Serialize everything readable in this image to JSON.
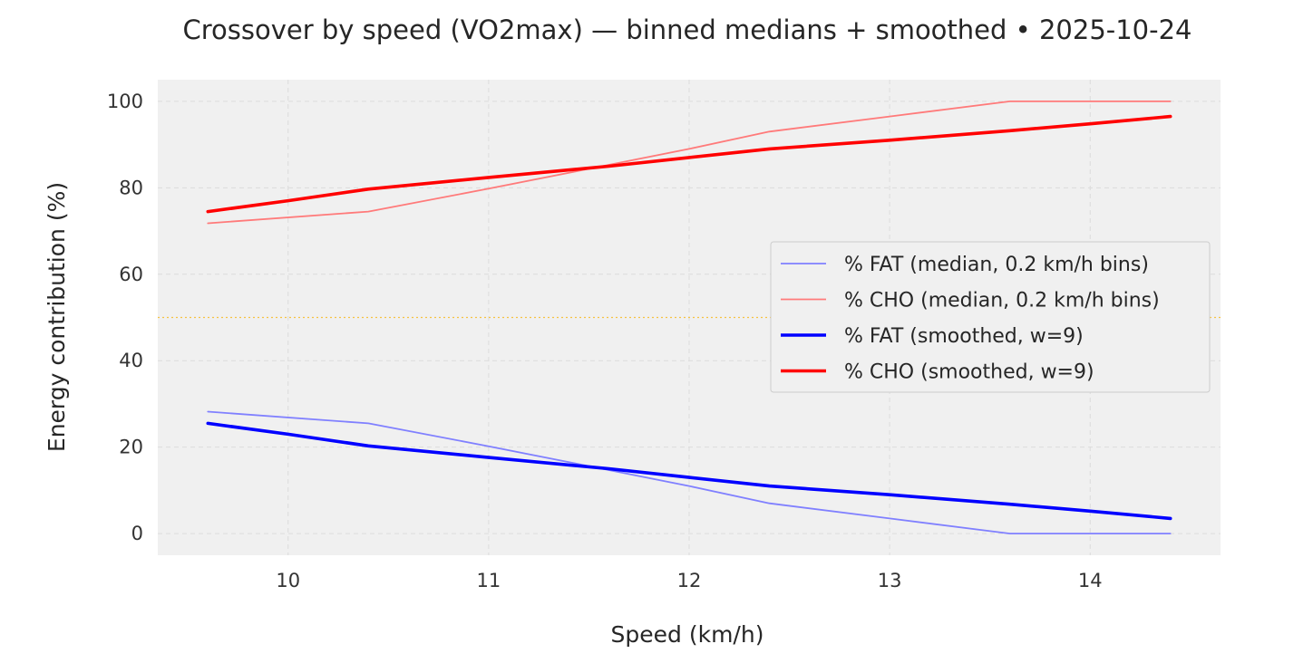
{
  "chart_data": {
    "type": "line",
    "title": "Crossover by speed (VO2max) — binned medians + smoothed • 2025-10-24",
    "xlabel": "Speed (km/h)",
    "ylabel": "Energy contribution (%)",
    "xlim": [
      9.35,
      14.65
    ],
    "ylim": [
      -5,
      105
    ],
    "x_ticks": [
      10,
      11,
      12,
      13,
      14
    ],
    "y_ticks": [
      0,
      20,
      40,
      60,
      80,
      100
    ],
    "grid": true,
    "legend_position": "center-right",
    "reference_line": {
      "y": 50,
      "color": "#f5c242",
      "style": "dotted"
    },
    "series": [
      {
        "name": "% FAT (median, 0.2 km/h bins)",
        "color": "#8080ff",
        "width": "thin",
        "x": [
          9.6,
          10.4,
          11.0,
          11.6,
          12.0,
          12.4,
          13.0,
          13.6,
          14.0,
          14.4
        ],
        "y": [
          28.2,
          25.5,
          20.2,
          14.7,
          11.0,
          7.0,
          3.5,
          0.0,
          0.0,
          0.0
        ]
      },
      {
        "name": "% CHO (median, 0.2 km/h bins)",
        "color": "#ff7a7a",
        "width": "thin",
        "x": [
          9.6,
          10.4,
          11.0,
          11.6,
          12.0,
          12.4,
          13.0,
          13.6,
          14.0,
          14.4
        ],
        "y": [
          71.8,
          74.5,
          79.8,
          85.3,
          89.0,
          93.0,
          96.5,
          100.0,
          100.0,
          100.0
        ]
      },
      {
        "name": "% FAT (smoothed, w=9)",
        "color": "#0000ff",
        "width": "thick",
        "x": [
          9.6,
          10.0,
          10.4,
          11.0,
          11.6,
          12.0,
          12.4,
          13.0,
          13.6,
          14.0,
          14.4
        ],
        "y": [
          25.5,
          23.0,
          20.3,
          17.6,
          15.0,
          13.0,
          11.0,
          9.0,
          6.8,
          5.2,
          3.5
        ]
      },
      {
        "name": "% CHO (smoothed, w=9)",
        "color": "#ff0000",
        "width": "thick",
        "x": [
          9.6,
          10.0,
          10.4,
          11.0,
          11.6,
          12.0,
          12.4,
          13.0,
          13.6,
          14.0,
          14.4
        ],
        "y": [
          74.5,
          77.0,
          79.7,
          82.4,
          85.0,
          87.0,
          89.0,
          91.0,
          93.2,
          94.8,
          96.5
        ]
      }
    ]
  }
}
